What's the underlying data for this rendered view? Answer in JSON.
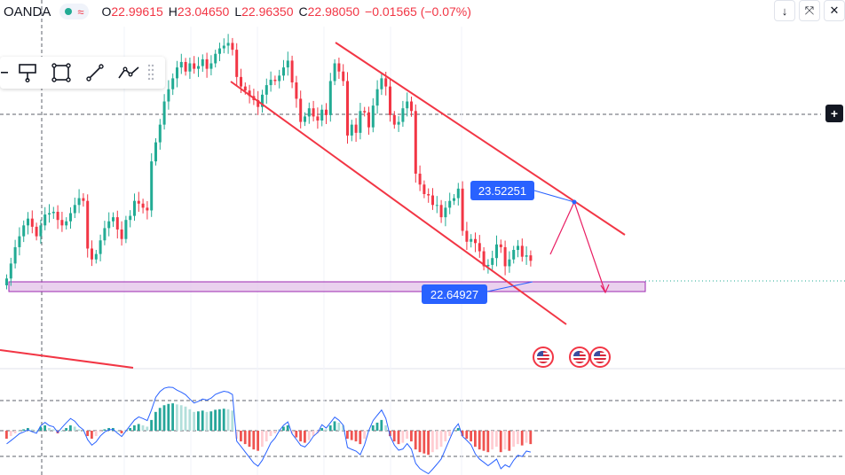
{
  "header": {
    "symbol": "OANDA",
    "wave_icon": "≈",
    "o_label": "O",
    "o": "22.99615",
    "h_label": "H",
    "h": "23.04650",
    "l_label": "L",
    "l": "22.96350",
    "c_label": "C",
    "c": "22.98050",
    "change": "−0.01565 (−0.07%)"
  },
  "toolbar": {
    "tools": [
      "minus-icon",
      "flag-marker-icon",
      "rectangle-icon",
      "trend-line-icon",
      "path-icon"
    ]
  },
  "right_controls": {
    "down_arrow": "↓",
    "collapse": "⤧",
    "close": "✕",
    "plus": "+"
  },
  "annotations": {
    "upper_label": "23.52251",
    "lower_label": "22.64927"
  },
  "colors": {
    "up": "#22ab94",
    "down": "#f23645",
    "trendline": "#f23645",
    "label_bg": "#2962ff",
    "zone_fill": "#e1bee7",
    "zone_border": "#9c27b0",
    "hist_up_strong": "#26a69a",
    "hist_up_weak": "#b2dfdb",
    "hist_down_strong": "#ef5350",
    "hist_down_weak": "#ffcdd2",
    "osc_line": "#2962ff"
  },
  "chart_data": {
    "type": "candlestick",
    "y_range": [
      22.35,
      24.4
    ],
    "support_zone": [
      22.62,
      22.7
    ],
    "projection": {
      "start_price": 22.77,
      "peak_price": 23.47,
      "end_price": 22.66
    },
    "closes": [
      22.55,
      22.66,
      22.78,
      22.86,
      22.94,
      22.99,
      22.93,
      22.86,
      22.94,
      23.02,
      23.03,
      23.04,
      22.98,
      22.94,
      22.97,
      23.03,
      23.09,
      23.14,
      23.12,
      22.77,
      22.69,
      22.73,
      22.83,
      22.92,
      22.97,
      23.0,
      22.91,
      22.84,
      22.98,
      23.01,
      23.12,
      23.1,
      23.07,
      23.05,
      23.41,
      23.55,
      23.68,
      23.85,
      23.94,
      24.02,
      24.1,
      24.14,
      24.07,
      24.13,
      24.09,
      24.11,
      24.16,
      24.09,
      24.13,
      24.2,
      24.24,
      24.26,
      24.28,
      24.23,
      24.03,
      23.96,
      23.93,
      23.89,
      23.86,
      23.81,
      23.9,
      23.97,
      24.01,
      24.0,
      24.04,
      24.1,
      24.15,
      23.99,
      23.87,
      23.7,
      23.74,
      23.8,
      23.74,
      23.71,
      23.79,
      23.75,
      24.0,
      24.13,
      24.07,
      24.0,
      23.6,
      23.68,
      23.62,
      23.78,
      23.77,
      23.66,
      23.82,
      23.94,
      24.02,
      23.96,
      23.75,
      23.68,
      23.7,
      23.8,
      23.85,
      23.78,
      23.32,
      23.24,
      23.17,
      23.16,
      23.09,
      23.09,
      23.0,
      23.07,
      23.12,
      23.14,
      23.21,
      22.9,
      22.82,
      22.84,
      22.81,
      22.75,
      22.64,
      22.65,
      22.7,
      22.8,
      22.78,
      22.64,
      22.69,
      22.76,
      22.79,
      22.71,
      22.72,
      22.68
    ],
    "oscillator_line": [
      -0.3,
      -0.2,
      -0.1,
      0.0,
      0.05,
      0.1,
      0.05,
      0.0,
      0.15,
      0.2,
      0.1,
      0.05,
      -0.1,
      0.0,
      0.1,
      0.2,
      0.15,
      0.05,
      0.0,
      -0.2,
      -0.3,
      -0.2,
      -0.05,
      0.05,
      0.1,
      0.1,
      0.0,
      -0.1,
      0.0,
      0.1,
      0.2,
      0.25,
      0.2,
      0.15,
      0.4,
      0.7,
      0.85,
      0.95,
      1.0,
      1.02,
      0.98,
      0.95,
      0.9,
      0.8,
      0.7,
      0.72,
      0.75,
      0.7,
      0.72,
      0.78,
      0.8,
      0.82,
      0.8,
      0.75,
      -0.3,
      -0.4,
      -0.5,
      -0.6,
      -0.7,
      -0.75,
      -0.6,
      -0.4,
      -0.2,
      -0.1,
      0.05,
      0.15,
      0.2,
      -0.1,
      -0.25,
      -0.4,
      -0.45,
      -0.35,
      -0.2,
      -0.1,
      0.1,
      0.05,
      0.2,
      0.35,
      0.3,
      0.2,
      -0.3,
      -0.35,
      -0.4,
      -0.5,
      -0.3,
      0.0,
      0.2,
      0.3,
      0.4,
      0.2,
      -0.2,
      -0.4,
      -0.5,
      -0.45,
      -0.3,
      -0.4,
      -0.7,
      -0.8,
      -0.85,
      -0.9,
      -0.8,
      -0.7,
      -0.6,
      -0.4,
      -0.2,
      0.0,
      0.1,
      -0.2,
      -0.3,
      -0.4,
      -0.6,
      -0.7,
      -0.75,
      -0.8,
      -0.7,
      -0.6,
      -0.8,
      -0.7,
      -0.75,
      -0.6,
      -0.5,
      -0.55,
      -0.45,
      -0.5
    ]
  }
}
